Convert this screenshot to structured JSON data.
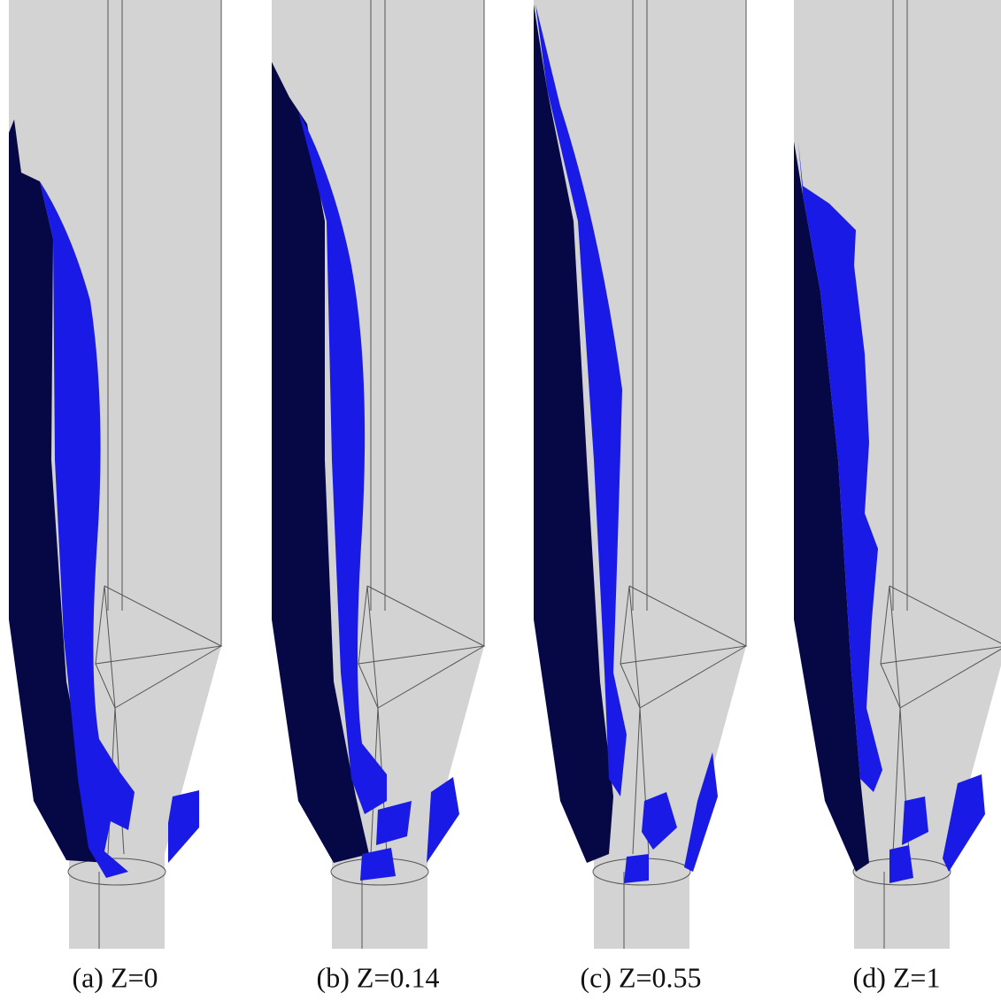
{
  "panels": [
    {
      "caption": "(a) Z=0"
    },
    {
      "caption": "(b) Z=0.14"
    },
    {
      "caption": "(c) Z=0.55"
    },
    {
      "caption": "(d) Z=1"
    }
  ]
}
